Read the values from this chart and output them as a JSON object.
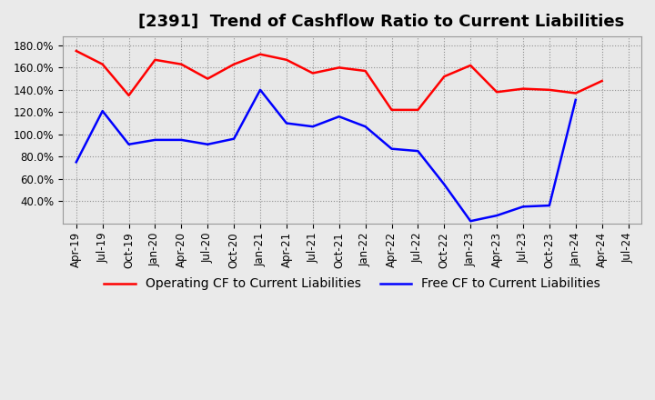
{
  "title": "[2391]  Trend of Cashflow Ratio to Current Liabilities",
  "x_labels": [
    "Apr-19",
    "Jul-19",
    "Oct-19",
    "Jan-20",
    "Apr-20",
    "Jul-20",
    "Oct-20",
    "Jan-21",
    "Apr-21",
    "Jul-21",
    "Oct-21",
    "Jan-22",
    "Apr-22",
    "Jul-22",
    "Oct-22",
    "Jan-23",
    "Apr-23",
    "Jul-23",
    "Oct-23",
    "Jan-24",
    "Apr-24",
    "Jul-24"
  ],
  "operating_cf": [
    1.75,
    1.63,
    1.35,
    1.67,
    1.63,
    1.5,
    1.63,
    1.72,
    1.67,
    1.55,
    1.6,
    1.57,
    1.22,
    1.22,
    1.52,
    1.62,
    1.38,
    1.41,
    1.4,
    1.37,
    1.48,
    null
  ],
  "free_cf": [
    0.75,
    1.21,
    0.91,
    0.95,
    0.95,
    0.91,
    0.96,
    1.4,
    1.1,
    1.07,
    1.16,
    1.07,
    0.87,
    0.85,
    0.55,
    0.22,
    0.27,
    0.35,
    0.36,
    1.31,
    null,
    null
  ],
  "operating_color": "#FF0000",
  "free_color": "#0000FF",
  "ylim": [
    0.2,
    1.88
  ],
  "yticks": [
    0.4,
    0.6,
    0.8,
    1.0,
    1.2,
    1.4,
    1.6,
    1.8
  ],
  "ytick_labels": [
    "40.0%",
    "60.0%",
    "80.0%",
    "100.0%",
    "120.0%",
    "140.0%",
    "160.0%",
    "180.0%"
  ],
  "background_color": "#EAEAEA",
  "plot_bg_color": "#E8E8E8",
  "grid_color": "#888888",
  "title_fontsize": 13,
  "legend_fontsize": 10,
  "tick_fontsize": 8.5
}
